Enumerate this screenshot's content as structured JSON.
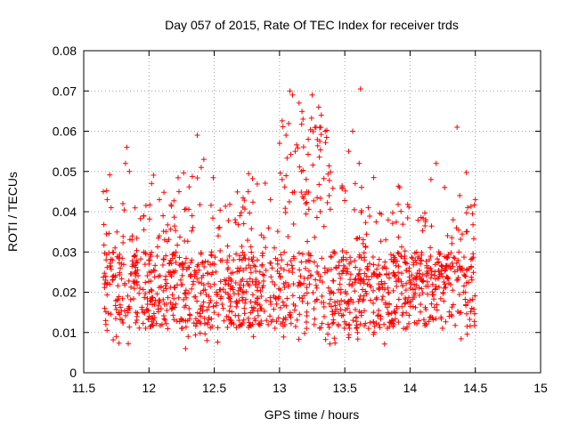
{
  "chart_data": {
    "type": "scatter",
    "title": "Day 057 of 2015, Rate Of TEC Index for receiver trds",
    "xlabel": "GPS time / hours",
    "ylabel": "ROTI / TECUs",
    "xlim": [
      11.5,
      15
    ],
    "ylim": [
      0,
      0.08
    ],
    "xticks": [
      "11.5",
      "12",
      "12.5",
      "13",
      "13.5",
      "14",
      "14.5",
      "15"
    ],
    "yticks": [
      "0",
      "0.01",
      "0.02",
      "0.03",
      "0.04",
      "0.05",
      "0.06",
      "0.07",
      "0.08"
    ],
    "grid": true,
    "marker": "+",
    "series": [
      {
        "name": "ROTI",
        "color": "#ff0000",
        "x_range": [
          11.65,
          14.5
        ],
        "points": [
          [
            11.65,
            0.045
          ],
          [
            11.66,
            0.016
          ],
          [
            11.67,
            0.012
          ],
          [
            11.68,
            0.043
          ],
          [
            11.7,
            0.022
          ],
          [
            11.71,
            0.041
          ],
          [
            11.72,
            0.028
          ],
          [
            11.74,
            0.031
          ],
          [
            11.75,
            0.009
          ],
          [
            11.76,
            0.018
          ],
          [
            11.78,
            0.026
          ],
          [
            11.8,
            0.042
          ],
          [
            11.82,
            0.052
          ],
          [
            11.83,
            0.056
          ],
          [
            11.85,
            0.05
          ],
          [
            11.87,
            0.033
          ],
          [
            11.9,
            0.015
          ],
          [
            11.93,
            0.021
          ],
          [
            11.96,
            0.039
          ],
          [
            12.0,
            0.027
          ],
          [
            12.02,
            0.047
          ],
          [
            12.05,
            0.018
          ],
          [
            12.08,
            0.043
          ],
          [
            12.1,
            0.012
          ],
          [
            12.12,
            0.033
          ],
          [
            12.15,
            0.025
          ],
          [
            12.18,
            0.016
          ],
          [
            12.2,
            0.029
          ],
          [
            12.23,
            0.045
          ],
          [
            12.25,
            0.011
          ],
          [
            12.28,
            0.006
          ],
          [
            12.3,
            0.009
          ],
          [
            12.33,
            0.039
          ],
          [
            12.35,
            0.024
          ],
          [
            12.37,
            0.059
          ],
          [
            12.4,
            0.051
          ],
          [
            12.42,
            0.053
          ],
          [
            12.45,
            0.012
          ],
          [
            12.48,
            0.03
          ],
          [
            12.5,
            0.022
          ],
          [
            12.53,
            0.034
          ],
          [
            12.56,
            0.017
          ],
          [
            12.6,
            0.028
          ],
          [
            12.63,
            0.013
          ],
          [
            12.66,
            0.038
          ],
          [
            12.7,
            0.026
          ],
          [
            12.73,
            0.016
          ],
          [
            12.76,
            0.045
          ],
          [
            12.8,
            0.009
          ],
          [
            12.83,
            0.028
          ],
          [
            12.86,
            0.019
          ],
          [
            12.9,
            0.013
          ],
          [
            12.93,
            0.043
          ],
          [
            12.96,
            0.031
          ],
          [
            13.0,
            0.057
          ],
          [
            13.02,
            0.048
          ],
          [
            13.05,
            0.059
          ],
          [
            13.08,
            0.07
          ],
          [
            13.1,
            0.069
          ],
          [
            13.12,
            0.055
          ],
          [
            13.15,
            0.067
          ],
          [
            13.18,
            0.063
          ],
          [
            13.2,
            0.042
          ],
          [
            13.22,
            0.058
          ],
          [
            13.25,
            0.069
          ],
          [
            13.28,
            0.061
          ],
          [
            13.3,
            0.066
          ],
          [
            13.32,
            0.064
          ],
          [
            13.35,
            0.06
          ],
          [
            13.38,
            0.044
          ],
          [
            13.4,
            0.02
          ],
          [
            13.42,
            0.03
          ],
          [
            13.45,
            0.012
          ],
          [
            13.48,
            0.046
          ],
          [
            13.5,
            0.026
          ],
          [
            13.53,
            0.055
          ],
          [
            13.56,
            0.06
          ],
          [
            13.58,
            0.047
          ],
          [
            13.61,
            0.052
          ],
          [
            13.62,
            0.0705
          ],
          [
            13.65,
            0.028
          ],
          [
            13.68,
            0.041
          ],
          [
            13.72,
            0.015
          ],
          [
            13.76,
            0.021
          ],
          [
            13.8,
            0.012
          ],
          [
            13.84,
            0.017
          ],
          [
            13.88,
            0.024
          ],
          [
            13.92,
            0.046
          ],
          [
            13.95,
            0.011
          ],
          [
            14.0,
            0.021
          ],
          [
            14.04,
            0.028
          ],
          [
            14.08,
            0.017
          ],
          [
            14.12,
            0.038
          ],
          [
            14.16,
            0.048
          ],
          [
            14.2,
            0.052
          ],
          [
            14.22,
            0.03
          ],
          [
            14.26,
            0.021
          ],
          [
            14.3,
            0.014
          ],
          [
            14.33,
            0.038
          ],
          [
            14.36,
            0.061
          ],
          [
            14.38,
            0.044
          ],
          [
            14.4,
            0.026
          ],
          [
            14.43,
            0.035
          ],
          [
            14.46,
            0.018
          ],
          [
            14.5,
            0.043
          ]
        ]
      }
    ]
  }
}
